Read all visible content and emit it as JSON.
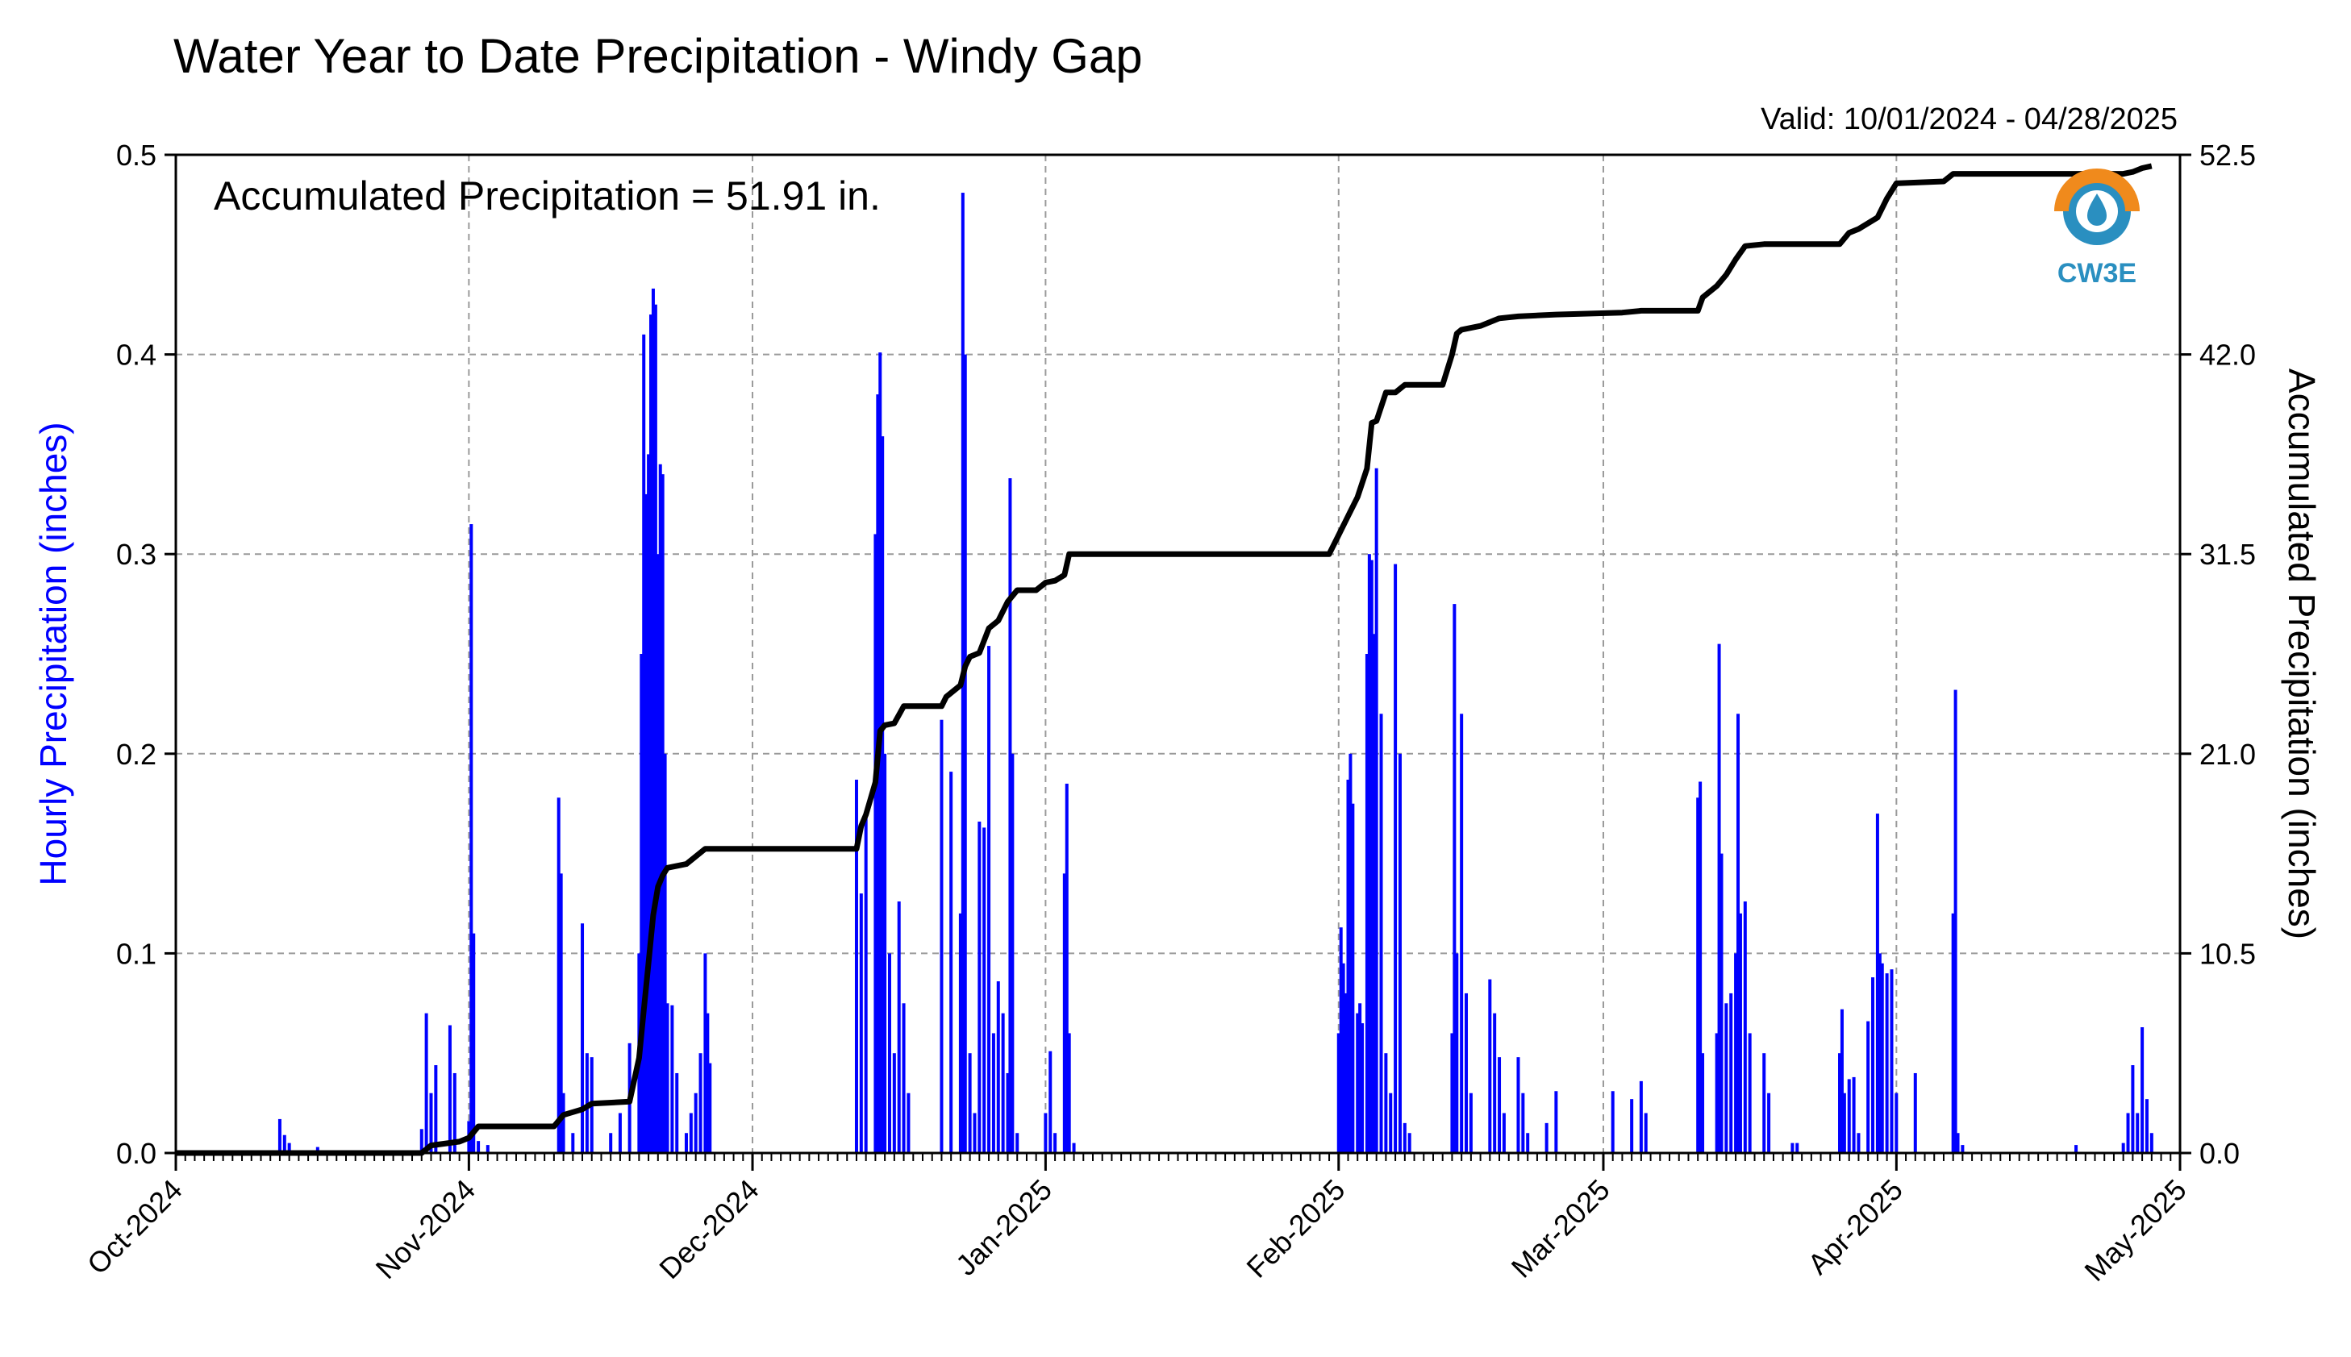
{
  "header": {
    "title": "Water Year to Date Precipitation - Windy Gap",
    "valid": "Valid: 10/01/2024 - 04/28/2025",
    "annotation": "Accumulated Precipitation = 51.91 in."
  },
  "logo": {
    "text": "CW3E",
    "icon": "water-drop-logo-icon",
    "colors": {
      "orange": "#f08a1c",
      "blue": "#2a8fc0"
    }
  },
  "colors": {
    "hourly": "#0000ff",
    "accum": "#000000",
    "left_label": "#0000ff"
  },
  "chart_data": {
    "type": "bar",
    "xlabel": "",
    "ylabel_left": "Hourly Precipitation (inches)",
    "ylabel_right": "Accumulated Precipitation (inches)",
    "x_range": [
      "2024-10-01",
      "2025-05-01"
    ],
    "ylim_left": [
      0,
      0.5
    ],
    "ylim_right": [
      0,
      52.5
    ],
    "grid": true,
    "x_ticks": [
      "Oct-2024",
      "Nov-2024",
      "Dec-2024",
      "Jan-2025",
      "Feb-2025",
      "Mar-2025",
      "Apr-2025",
      "May-2025"
    ],
    "x_tick_dates": [
      "2024-10-01",
      "2024-11-01",
      "2024-12-01",
      "2025-01-01",
      "2025-02-01",
      "2025-03-01",
      "2025-04-01",
      "2025-05-01"
    ],
    "y_ticks_left": [
      "0.0",
      "0.1",
      "0.2",
      "0.3",
      "0.4",
      "0.5"
    ],
    "y_ticks_right": [
      "0.0",
      "10.5",
      "21.0",
      "31.5",
      "42.0",
      "52.5"
    ],
    "series": [
      {
        "name": "Hourly Precipitation",
        "type": "bar",
        "axis": "left",
        "points": [
          [
            "2024-10-12",
            0.017
          ],
          [
            "2024-10-12T12",
            0.009
          ],
          [
            "2024-10-13",
            0.005
          ],
          [
            "2024-10-16",
            0.003
          ],
          [
            "2024-10-27",
            0.012
          ],
          [
            "2024-10-27T12",
            0.07
          ],
          [
            "2024-10-28",
            0.03
          ],
          [
            "2024-10-28T12",
            0.044
          ],
          [
            "2024-10-30",
            0.064
          ],
          [
            "2024-10-30T12",
            0.04
          ],
          [
            "2024-11-01",
            0.016
          ],
          [
            "2024-11-01T06",
            0.315
          ],
          [
            "2024-11-01T12",
            0.11
          ],
          [
            "2024-11-02",
            0.006
          ],
          [
            "2024-11-03",
            0.004
          ],
          [
            "2024-11-10T12",
            0.178
          ],
          [
            "2024-11-10T18",
            0.14
          ],
          [
            "2024-11-11",
            0.03
          ],
          [
            "2024-11-12",
            0.01
          ],
          [
            "2024-11-13",
            0.115
          ],
          [
            "2024-11-13T12",
            0.05
          ],
          [
            "2024-11-14",
            0.048
          ],
          [
            "2024-11-16",
            0.01
          ],
          [
            "2024-11-17",
            0.02
          ],
          [
            "2024-11-18",
            0.055
          ],
          [
            "2024-11-19",
            0.1
          ],
          [
            "2024-11-19T06",
            0.25
          ],
          [
            "2024-11-19T12",
            0.41
          ],
          [
            "2024-11-19T18",
            0.33
          ],
          [
            "2024-11-20",
            0.35
          ],
          [
            "2024-11-20T06",
            0.42
          ],
          [
            "2024-11-20T12",
            0.433
          ],
          [
            "2024-11-20T18",
            0.425
          ],
          [
            "2024-11-21",
            0.3
          ],
          [
            "2024-11-21T06",
            0.345
          ],
          [
            "2024-11-21T12",
            0.34
          ],
          [
            "2024-11-21T18",
            0.2
          ],
          [
            "2024-11-22",
            0.075
          ],
          [
            "2024-11-22T12",
            0.074
          ],
          [
            "2024-11-23",
            0.04
          ],
          [
            "2024-11-24",
            0.01
          ],
          [
            "2024-11-24T12",
            0.02
          ],
          [
            "2024-11-25",
            0.03
          ],
          [
            "2024-11-25T12",
            0.05
          ],
          [
            "2024-11-26",
            0.1
          ],
          [
            "2024-11-26T06",
            0.07
          ],
          [
            "2024-11-26T12",
            0.045
          ],
          [
            "2024-12-12",
            0.187
          ],
          [
            "2024-12-12T12",
            0.13
          ],
          [
            "2024-12-13",
            0.17
          ],
          [
            "2024-12-14",
            0.31
          ],
          [
            "2024-12-14T06",
            0.38
          ],
          [
            "2024-12-14T12",
            0.401
          ],
          [
            "2024-12-14T18",
            0.359
          ],
          [
            "2024-12-15",
            0.2
          ],
          [
            "2024-12-15T12",
            0.1
          ],
          [
            "2024-12-16",
            0.05
          ],
          [
            "2024-12-16T12",
            0.126
          ],
          [
            "2024-12-17",
            0.075
          ],
          [
            "2024-12-17T12",
            0.03
          ],
          [
            "2024-12-21",
            0.217
          ],
          [
            "2024-12-22",
            0.191
          ],
          [
            "2024-12-23",
            0.12
          ],
          [
            "2024-12-23T06",
            0.481
          ],
          [
            "2024-12-23T12",
            0.4
          ],
          [
            "2024-12-24",
            0.05
          ],
          [
            "2024-12-24T12",
            0.02
          ],
          [
            "2024-12-25",
            0.166
          ],
          [
            "2024-12-25T12",
            0.163
          ],
          [
            "2024-12-26",
            0.254
          ],
          [
            "2024-12-26T12",
            0.06
          ],
          [
            "2024-12-27",
            0.086
          ],
          [
            "2024-12-27T12",
            0.07
          ],
          [
            "2024-12-28",
            0.04
          ],
          [
            "2024-12-28T06",
            0.338
          ],
          [
            "2024-12-28T12",
            0.2
          ],
          [
            "2024-12-29",
            0.01
          ],
          [
            "2025-01-01",
            0.02
          ],
          [
            "2025-01-01T12",
            0.051
          ],
          [
            "2025-01-02",
            0.01
          ],
          [
            "2025-01-03",
            0.14
          ],
          [
            "2025-01-03T06",
            0.185
          ],
          [
            "2025-01-03T12",
            0.06
          ],
          [
            "2025-01-04",
            0.005
          ],
          [
            "2025-02-01",
            0.06
          ],
          [
            "2025-02-01T06",
            0.113
          ],
          [
            "2025-02-01T12",
            0.095
          ],
          [
            "2025-02-01T18",
            0.08
          ],
          [
            "2025-02-02",
            0.187
          ],
          [
            "2025-02-02T06",
            0.2
          ],
          [
            "2025-02-02T12",
            0.175
          ],
          [
            "2025-02-03",
            0.07
          ],
          [
            "2025-02-03T06",
            0.075
          ],
          [
            "2025-02-03T12",
            0.065
          ],
          [
            "2025-02-04",
            0.25
          ],
          [
            "2025-02-04T06",
            0.3
          ],
          [
            "2025-02-04T12",
            0.297
          ],
          [
            "2025-02-04T18",
            0.26
          ],
          [
            "2025-02-05",
            0.343
          ],
          [
            "2025-02-05T12",
            0.22
          ],
          [
            "2025-02-06",
            0.05
          ],
          [
            "2025-02-06T12",
            0.03
          ],
          [
            "2025-02-07",
            0.295
          ],
          [
            "2025-02-07T12",
            0.2
          ],
          [
            "2025-02-08",
            0.015
          ],
          [
            "2025-02-08T12",
            0.01
          ],
          [
            "2025-02-13",
            0.06
          ],
          [
            "2025-02-13T06",
            0.275
          ],
          [
            "2025-02-13T12",
            0.1
          ],
          [
            "2025-02-14",
            0.22
          ],
          [
            "2025-02-14T12",
            0.08
          ],
          [
            "2025-02-15",
            0.03
          ],
          [
            "2025-02-17",
            0.087
          ],
          [
            "2025-02-17T12",
            0.07
          ],
          [
            "2025-02-18",
            0.048
          ],
          [
            "2025-02-18T12",
            0.02
          ],
          [
            "2025-02-20",
            0.048
          ],
          [
            "2025-02-20T12",
            0.03
          ],
          [
            "2025-02-21",
            0.01
          ],
          [
            "2025-02-23",
            0.015
          ],
          [
            "2025-02-24",
            0.031
          ],
          [
            "2025-03-02",
            0.031
          ],
          [
            "2025-03-04",
            0.027
          ],
          [
            "2025-03-05",
            0.036
          ],
          [
            "2025-03-05T12",
            0.02
          ],
          [
            "2025-03-11",
            0.178
          ],
          [
            "2025-03-11T06",
            0.186
          ],
          [
            "2025-03-11T12",
            0.05
          ],
          [
            "2025-03-13",
            0.06
          ],
          [
            "2025-03-13T06",
            0.255
          ],
          [
            "2025-03-13T12",
            0.15
          ],
          [
            "2025-03-14",
            0.075
          ],
          [
            "2025-03-14T12",
            0.08
          ],
          [
            "2025-03-15",
            0.1
          ],
          [
            "2025-03-15T06",
            0.22
          ],
          [
            "2025-03-15T12",
            0.12
          ],
          [
            "2025-03-16",
            0.126
          ],
          [
            "2025-03-16T12",
            0.06
          ],
          [
            "2025-03-18",
            0.05
          ],
          [
            "2025-03-18T12",
            0.03
          ],
          [
            "2025-03-21",
            0.005
          ],
          [
            "2025-03-21T12",
            0.005
          ],
          [
            "2025-03-26",
            0.05
          ],
          [
            "2025-03-26T06",
            0.072
          ],
          [
            "2025-03-26T12",
            0.03
          ],
          [
            "2025-03-27",
            0.037
          ],
          [
            "2025-03-27T12",
            0.038
          ],
          [
            "2025-03-28",
            0.01
          ],
          [
            "2025-03-29",
            0.066
          ],
          [
            "2025-03-29T12",
            0.088
          ],
          [
            "2025-03-30",
            0.17
          ],
          [
            "2025-03-30T06",
            0.1
          ],
          [
            "2025-03-30T12",
            0.095
          ],
          [
            "2025-03-31",
            0.09
          ],
          [
            "2025-03-31T12",
            0.092
          ],
          [
            "2025-04-01",
            0.03
          ],
          [
            "2025-04-03",
            0.04
          ],
          [
            "2025-04-07",
            0.12
          ],
          [
            "2025-04-07T06",
            0.232
          ],
          [
            "2025-04-07T12",
            0.01
          ],
          [
            "2025-04-08",
            0.004
          ],
          [
            "2025-04-20",
            0.004
          ],
          [
            "2025-04-25",
            0.005
          ],
          [
            "2025-04-25T12",
            0.02
          ],
          [
            "2025-04-26",
            0.044
          ],
          [
            "2025-04-26T12",
            0.02
          ],
          [
            "2025-04-27",
            0.063
          ],
          [
            "2025-04-27T12",
            0.027
          ],
          [
            "2025-04-28",
            0.01
          ]
        ]
      },
      {
        "name": "Accumulated Precipitation",
        "type": "line",
        "axis": "right",
        "points": [
          [
            "2024-10-01",
            0.0
          ],
          [
            "2024-10-27",
            0.0
          ],
          [
            "2024-10-28",
            0.4
          ],
          [
            "2024-10-31",
            0.6
          ],
          [
            "2024-11-01",
            0.8
          ],
          [
            "2024-11-02",
            1.4
          ],
          [
            "2024-11-10",
            1.4
          ],
          [
            "2024-11-11",
            2.0
          ],
          [
            "2024-11-13",
            2.3
          ],
          [
            "2024-11-14",
            2.6
          ],
          [
            "2024-11-18",
            2.7
          ],
          [
            "2024-11-19",
            5.0
          ],
          [
            "2024-11-19T12",
            7.5
          ],
          [
            "2024-11-20",
            10.0
          ],
          [
            "2024-11-20T12",
            12.5
          ],
          [
            "2024-11-21",
            14.0
          ],
          [
            "2024-11-21T12",
            14.6
          ],
          [
            "2024-11-22",
            15.0
          ],
          [
            "2024-11-24",
            15.2
          ],
          [
            "2024-11-26",
            16.0
          ],
          [
            "2024-12-12",
            16.0
          ],
          [
            "2024-12-12T12",
            17.2
          ],
          [
            "2024-12-13",
            17.8
          ],
          [
            "2024-12-14",
            19.5
          ],
          [
            "2024-12-14T12",
            22.2
          ],
          [
            "2024-12-15",
            22.5
          ],
          [
            "2024-12-16",
            22.6
          ],
          [
            "2024-12-17",
            23.5
          ],
          [
            "2024-12-21",
            23.5
          ],
          [
            "2024-12-21T12",
            24.0
          ],
          [
            "2024-12-23",
            24.6
          ],
          [
            "2024-12-23T12",
            25.6
          ],
          [
            "2024-12-24",
            26.1
          ],
          [
            "2024-12-25",
            26.3
          ],
          [
            "2024-12-26",
            27.6
          ],
          [
            "2024-12-27",
            28.0
          ],
          [
            "2024-12-28",
            29.0
          ],
          [
            "2024-12-29",
            29.6
          ],
          [
            "2024-12-31",
            29.6
          ],
          [
            "2025-01-01",
            30.0
          ],
          [
            "2025-01-02",
            30.1
          ],
          [
            "2025-01-03",
            30.4
          ],
          [
            "2025-01-03T12",
            31.5
          ],
          [
            "2025-01-31",
            31.5
          ],
          [
            "2025-02-01",
            32.5
          ],
          [
            "2025-02-02",
            33.5
          ],
          [
            "2025-02-03",
            34.5
          ],
          [
            "2025-02-04",
            36.0
          ],
          [
            "2025-02-04T12",
            38.4
          ],
          [
            "2025-02-05",
            38.5
          ],
          [
            "2025-02-06",
            40.0
          ],
          [
            "2025-02-07",
            40.0
          ],
          [
            "2025-02-08",
            40.4
          ],
          [
            "2025-02-12",
            40.4
          ],
          [
            "2025-02-13",
            42.0
          ],
          [
            "2025-02-13T12",
            43.1
          ],
          [
            "2025-02-14",
            43.3
          ],
          [
            "2025-02-16",
            43.5
          ],
          [
            "2025-02-17",
            43.7
          ],
          [
            "2025-02-18",
            43.9
          ],
          [
            "2025-02-20",
            44.0
          ],
          [
            "2025-02-24",
            44.1
          ],
          [
            "2025-03-03",
            44.2
          ],
          [
            "2025-03-05",
            44.3
          ],
          [
            "2025-03-11",
            44.3
          ],
          [
            "2025-03-11T12",
            45.0
          ],
          [
            "2025-03-13",
            45.6
          ],
          [
            "2025-03-14",
            46.2
          ],
          [
            "2025-03-15",
            47.0
          ],
          [
            "2025-03-16",
            47.7
          ],
          [
            "2025-03-18",
            47.8
          ],
          [
            "2025-03-26",
            47.8
          ],
          [
            "2025-03-27",
            48.4
          ],
          [
            "2025-03-28",
            48.6
          ],
          [
            "2025-03-30",
            49.2
          ],
          [
            "2025-03-31",
            50.2
          ],
          [
            "2025-04-01",
            51.0
          ],
          [
            "2025-04-06",
            51.1
          ],
          [
            "2025-04-07",
            51.5
          ],
          [
            "2025-04-25",
            51.5
          ],
          [
            "2025-04-26",
            51.6
          ],
          [
            "2025-04-27",
            51.8
          ],
          [
            "2025-04-28",
            51.91
          ]
        ]
      }
    ]
  }
}
